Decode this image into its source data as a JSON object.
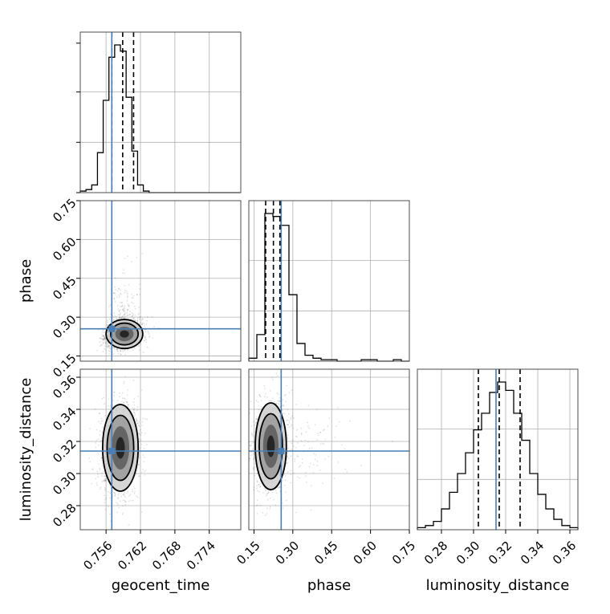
{
  "chart_data": {
    "type": "corner",
    "colors": {
      "truth": "#4a7fb5",
      "hist": "#000000",
      "grid": "#b0b0b0",
      "axis_frame": "#4d4d4d",
      "points": "#000000",
      "density_fill": [
        "#d0d0d0",
        "#9a9a9a",
        "#5a5a5a",
        "#1a1a1a"
      ]
    },
    "grid": true,
    "parameters": [
      {
        "name": "geocent_time",
        "label": "geocent_time",
        "range": [
          0.7515,
          0.7795
        ],
        "ticks": [
          0.756,
          0.762,
          0.768,
          0.774
        ],
        "tick_labels": [
          "0.756",
          "0.762",
          "0.768",
          "0.774"
        ],
        "truth": 0.757,
        "quantiles": [
          0.757,
          0.7589,
          0.7608
        ],
        "hist_bins": [
          0.7515,
          0.7525,
          0.7535,
          0.7545,
          0.7555,
          0.7565,
          0.7575,
          0.7585,
          0.7595,
          0.7605,
          0.7615,
          0.7625,
          0.7635,
          0.7645,
          0.7655,
          0.7665,
          0.7675,
          0.7685,
          0.7695,
          0.7705,
          0.7715,
          0.7725,
          0.7735,
          0.7745,
          0.7755,
          0.7765,
          0.7775,
          0.7785,
          0.7795
        ],
        "hist_counts": [
          1,
          2,
          5,
          26,
          60,
          88,
          96,
          92,
          62,
          27,
          5,
          1,
          0,
          0,
          0,
          0,
          0,
          0,
          0,
          0,
          0,
          0,
          0,
          0,
          0,
          0,
          0,
          0
        ]
      },
      {
        "name": "phase",
        "label": "phase",
        "range": [
          0.13,
          0.75
        ],
        "ticks": [
          0.15,
          0.3,
          0.45,
          0.6,
          0.75
        ],
        "tick_labels": [
          "0.15",
          "0.30",
          "0.45",
          "0.60",
          "0.75"
        ],
        "truth": 0.255,
        "quantiles": [
          0.195,
          0.225,
          0.25
        ],
        "hist_bins": [
          0.13,
          0.161,
          0.192,
          0.223,
          0.254,
          0.285,
          0.316,
          0.347,
          0.378,
          0.409,
          0.44,
          0.471,
          0.502,
          0.533,
          0.564,
          0.595,
          0.626,
          0.657,
          0.688,
          0.719,
          0.75
        ],
        "hist_counts": [
          2,
          18,
          100,
          98,
          92,
          45,
          12,
          4,
          2,
          1,
          1,
          0,
          0,
          0,
          1,
          1,
          0,
          0,
          1,
          0
        ]
      },
      {
        "name": "luminosity_distance",
        "label": "luminosity_distance",
        "range": [
          0.265,
          0.365
        ],
        "ticks": [
          0.28,
          0.3,
          0.32,
          0.34,
          0.36
        ],
        "tick_labels": [
          "0.28",
          "0.30",
          "0.32",
          "0.34",
          "0.36"
        ],
        "truth": 0.314,
        "quantiles": [
          0.303,
          0.316,
          0.329
        ],
        "hist_bins": [
          0.265,
          0.27,
          0.275,
          0.28,
          0.285,
          0.29,
          0.295,
          0.3,
          0.305,
          0.31,
          0.315,
          0.32,
          0.325,
          0.33,
          0.335,
          0.34,
          0.345,
          0.35,
          0.355,
          0.36,
          0.365
        ],
        "hist_counts": [
          1,
          2,
          4,
          10,
          18,
          27,
          37,
          48,
          56,
          66,
          71,
          67,
          56,
          43,
          27,
          17,
          10,
          5,
          2,
          1
        ]
      }
    ],
    "pairs": [
      {
        "x": "geocent_time",
        "y": "phase",
        "center": [
          0.7592,
          0.235
        ],
        "sigma": [
          0.0016,
          0.028
        ],
        "rho": 0.15
      },
      {
        "x": "geocent_time",
        "y": "luminosity_distance",
        "center": [
          0.7585,
          0.316
        ],
        "sigma": [
          0.00155,
          0.0135
        ],
        "rho": 0.05
      },
      {
        "x": "phase",
        "y": "luminosity_distance",
        "center": [
          0.215,
          0.317
        ],
        "sigma": [
          0.03,
          0.0135
        ],
        "rho": 0.1
      }
    ]
  }
}
